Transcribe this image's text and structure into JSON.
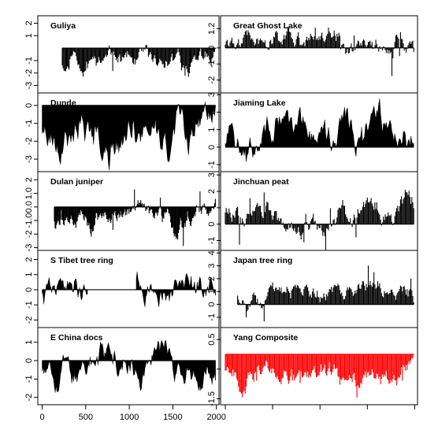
{
  "chart_data": [
    {
      "type": "bar",
      "title": "Guliya",
      "column": "left",
      "ylim": [
        -3.6,
        2.6
      ],
      "yticks": [
        -3,
        -2,
        -1,
        1,
        2
      ],
      "ytick_labels": [
        "-3",
        "-2",
        "-1",
        "1",
        "2"
      ],
      "x_start": 230,
      "x_end": 1990,
      "x_step": 10,
      "values_seed": 11,
      "values_mean": -1.1,
      "values_amp": 0.9,
      "values_spike": 1.2,
      "fill": "#000000"
    },
    {
      "type": "area",
      "title": "Dunde",
      "column": "left",
      "ylim": [
        -3.7,
        0.7
      ],
      "yticks": [
        -3,
        -2,
        -1,
        0
      ],
      "ytick_labels": [
        "-3",
        "-2",
        "-1",
        "0"
      ],
      "x_start": 0,
      "x_end": 1990,
      "x_step": 10,
      "values_seed": 23,
      "values_mean": -1.2,
      "values_amp": 1.3,
      "values_spike": 0.3,
      "fill": "#000000"
    },
    {
      "type": "bar",
      "title": "Dulan juniper",
      "column": "left",
      "ylim": [
        -3.2,
        2.6
      ],
      "yticks": [
        -3,
        -2,
        -1.0,
        0.0,
        1.0,
        2
      ],
      "ytick_labels": [
        "-3",
        "-2",
        "-1.0",
        "0.0",
        "1.0",
        "2"
      ],
      "x_start": 140,
      "x_end": 1990,
      "x_step": 8,
      "values_seed": 37,
      "values_mean": -0.9,
      "values_amp": 0.9,
      "values_spike": 1.6,
      "fill": "#000000"
    },
    {
      "type": "area",
      "title": "S Tibet tree ring",
      "column": "left",
      "ylim": [
        -2.5,
        2.6
      ],
      "yticks": [
        -2,
        -1,
        0,
        1,
        2
      ],
      "ytick_labels": [
        "-2",
        "-1",
        "0",
        "1",
        "2"
      ],
      "x_start": 0,
      "x_end": 1990,
      "x_step": 10,
      "gap": [
        520,
        1080
      ],
      "values_seed": 41,
      "values_mean": -0.1,
      "values_amp": 1.2,
      "values_spike": 0.2,
      "fill": "#000000"
    },
    {
      "type": "area",
      "title": "E China docs",
      "column": "left",
      "ylim": [
        -2.4,
        1.8
      ],
      "yticks": [
        -2,
        -1,
        0,
        1
      ],
      "ytick_labels": [
        "-2",
        "-1",
        "0",
        "1"
      ],
      "x_start": 0,
      "x_end": 1990,
      "x_step": 10,
      "values_seed": 53,
      "values_mean": -0.2,
      "values_amp": 1.0,
      "values_spike": 0.2,
      "fill": "#000000"
    },
    {
      "type": "bar",
      "title": "Great Ghost Lake",
      "column": "right",
      "ylim": [
        -2.8,
        2.0
      ],
      "yticks": [
        -2,
        -1,
        0,
        1.2
      ],
      "ytick_labels": [
        "-2",
        "-1",
        "0",
        "1.2"
      ],
      "x_start": 0,
      "x_end": 1990,
      "x_step": 10,
      "values_seed": 61,
      "values_mean": 0.3,
      "values_amp": 0.8,
      "values_spike": 1.5,
      "fill": "#000000"
    },
    {
      "type": "area",
      "title": "Jiaming Lake",
      "column": "right",
      "ylim": [
        -1.4,
        3.1
      ],
      "yticks": [
        -1,
        0,
        1,
        2,
        3
      ],
      "ytick_labels": [
        "-1",
        "0",
        "1",
        "2",
        "3"
      ],
      "x_start": 0,
      "x_end": 1990,
      "x_step": 10,
      "values_seed": 71,
      "values_mean": 0.4,
      "values_amp": 1.3,
      "values_spike": 0.3,
      "fill": "#000000"
    },
    {
      "type": "bar",
      "title": "Jinchuan peat",
      "column": "right",
      "ylim": [
        -1.6,
        3.2
      ],
      "yticks": [
        -1,
        0,
        1,
        2,
        3
      ],
      "ytick_labels": [
        "-1",
        "0",
        "1",
        "2",
        "3"
      ],
      "x_start": 0,
      "x_end": 1990,
      "x_step": 10,
      "values_seed": 83,
      "values_mean": 0.8,
      "values_amp": 0.9,
      "values_spike": 1.4,
      "fill": "#000000"
    },
    {
      "type": "bar",
      "title": "Japan tree ring",
      "column": "right",
      "ylim": [
        -1.8,
        4.2
      ],
      "yticks": [
        -1,
        0,
        1,
        2,
        3,
        4
      ],
      "ytick_labels": [
        "-1",
        "0",
        "1",
        "2",
        "3",
        "4"
      ],
      "x_start": 130,
      "x_end": 1990,
      "x_step": 10,
      "values_seed": 97,
      "values_mean": 1.0,
      "values_amp": 0.9,
      "values_spike": 1.8,
      "fill": "#000000"
    },
    {
      "type": "bar",
      "title": "Yang Composite",
      "column": "right",
      "ylim": [
        -1.7,
        0.9
      ],
      "yticks": [
        -1.5,
        -0.5,
        0.5
      ],
      "ytick_labels": [
        "-1.5",
        "-0.5",
        "0.5"
      ],
      "x_start": 0,
      "x_end": 1990,
      "x_step": 10,
      "values_seed": 101,
      "values_mean": -0.45,
      "values_amp": 0.45,
      "values_spike": 0.5,
      "fill": "#ff0000"
    }
  ],
  "xaxis": {
    "xlim": [
      -50,
      2030
    ],
    "ticks": [
      0,
      500,
      1000,
      1500,
      2000
    ],
    "tick_labels": [
      "0",
      "500",
      "1000",
      "1500",
      "2000"
    ]
  }
}
